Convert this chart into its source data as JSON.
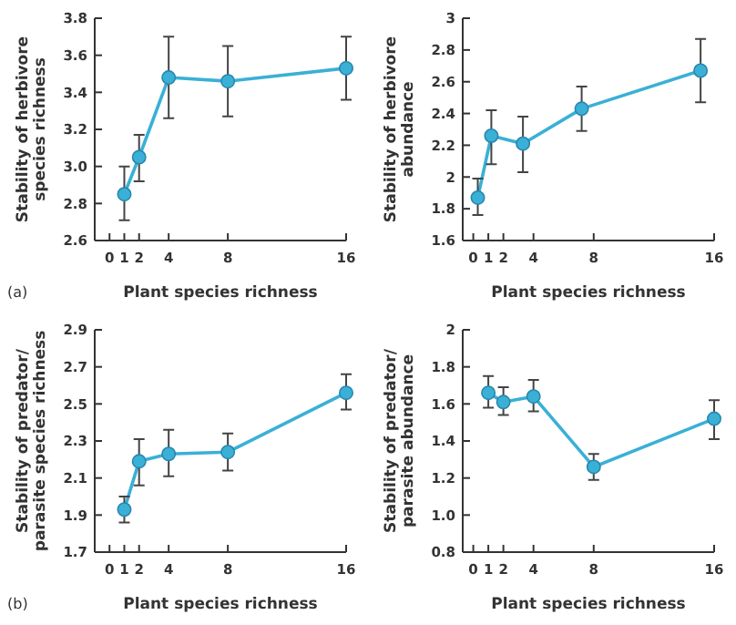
{
  "chart_data": [
    {
      "type": "line",
      "xlabel": "Plant species richness",
      "ylabel": "Stability of herbivore species richness",
      "annotations": [
        "(a)"
      ],
      "xlim": [
        -1,
        16
      ],
      "xticks": [
        0,
        1,
        2,
        4,
        8,
        16
      ],
      "ylim": [
        2.6,
        3.8
      ],
      "yticks": [
        2.6,
        2.8,
        {
          "value": 3,
          "label": "3.0"
        },
        3.2,
        3.4,
        3.6,
        3.8
      ],
      "marker": "circle",
      "series": [
        {
          "color": "#3ab0d6",
          "x": [
            1,
            2,
            4,
            8,
            16
          ],
          "values": [
            2.85,
            3.05,
            3.48,
            3.46,
            3.53
          ],
          "errors": [
            [
              2.71,
              3.0
            ],
            [
              2.92,
              3.17
            ],
            [
              3.26,
              3.7
            ],
            [
              3.27,
              3.65
            ],
            [
              3.36,
              3.7
            ]
          ]
        }
      ]
    },
    {
      "type": "line",
      "xlabel": "Plant species richness",
      "ylabel": "Stability of herbivore abundance",
      "xlim": [
        -0.7,
        16
      ],
      "xticks": [
        0,
        1,
        2,
        4,
        8,
        16
      ],
      "ylim": [
        1.6,
        3
      ],
      "yticks": [
        1.6,
        1.8,
        2,
        2.2,
        2.4,
        2.6,
        2.8,
        3
      ],
      "marker": "circle",
      "series": [
        {
          "color": "#3ab0d6",
          "x": [
            0.3,
            1.2,
            3.3,
            7.2,
            15.1
          ],
          "values": [
            1.87,
            2.26,
            2.21,
            2.43,
            2.67
          ],
          "errors": [
            [
              1.76,
              1.99
            ],
            [
              2.08,
              2.42
            ],
            [
              2.03,
              2.38
            ],
            [
              2.29,
              2.57
            ],
            [
              2.47,
              2.87
            ]
          ]
        }
      ]
    },
    {
      "type": "line",
      "xlabel": "Plant species richness",
      "ylabel": "Stability of predator/ parasite species richness",
      "annotations": [
        "(b)"
      ],
      "xlim": [
        -1,
        16
      ],
      "xticks": [
        0,
        1,
        2,
        4,
        8,
        16
      ],
      "ylim": [
        1.7,
        2.9
      ],
      "yticks": [
        1.7,
        1.9,
        2.1,
        2.3,
        2.5,
        2.7,
        2.9
      ],
      "marker": "circle",
      "series": [
        {
          "color": "#3ab0d6",
          "x": [
            1,
            2,
            4,
            8,
            16
          ],
          "values": [
            1.93,
            2.19,
            2.23,
            2.24,
            2.56
          ],
          "errors": [
            [
              1.86,
              2.0
            ],
            [
              2.06,
              2.31
            ],
            [
              2.11,
              2.36
            ],
            [
              2.14,
              2.34
            ],
            [
              2.47,
              2.66
            ]
          ]
        }
      ]
    },
    {
      "type": "line",
      "xlabel": "Plant species richness",
      "ylabel": "Stability of predator/ parasite abundance",
      "xlim": [
        -0.7,
        16
      ],
      "xticks": [
        0,
        1,
        2,
        4,
        8,
        16
      ],
      "ylim": [
        0.8,
        2
      ],
      "yticks": [
        0.8,
        {
          "value": 1,
          "label": "1.0"
        },
        1.2,
        1.4,
        1.6,
        1.8,
        2
      ],
      "marker": "circle",
      "series": [
        {
          "color": "#3ab0d6",
          "x": [
            1,
            2,
            4,
            8,
            16
          ],
          "values": [
            1.66,
            1.61,
            1.64,
            1.26,
            1.52
          ],
          "errors": [
            [
              1.58,
              1.75
            ],
            [
              1.54,
              1.69
            ],
            [
              1.56,
              1.73
            ],
            [
              1.19,
              1.33
            ],
            [
              1.41,
              1.62
            ]
          ]
        }
      ]
    }
  ]
}
